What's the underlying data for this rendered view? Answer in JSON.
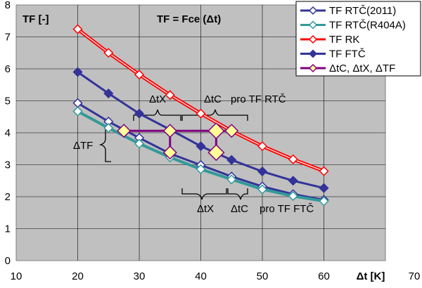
{
  "chart_data": {
    "type": "line",
    "title": "TF = Fce (Δt)",
    "ylabel": "TF [-]",
    "xlabel": "Δt [K]",
    "xlim": [
      10,
      70
    ],
    "ylim": [
      0,
      8
    ],
    "xticks": [
      10,
      20,
      30,
      40,
      50,
      60,
      70
    ],
    "yticks": [
      0,
      1,
      2,
      3,
      4,
      5,
      6,
      7,
      8
    ],
    "grid": true,
    "legend_position": "top-right",
    "plot_background": "#c0c0c0",
    "series": [
      {
        "name": "TF RTČ(2011)",
        "color": "#333399",
        "marker": "diamond-open",
        "x": [
          20,
          25,
          30,
          35,
          40,
          45,
          50,
          55,
          60
        ],
        "y": [
          4.93,
          4.35,
          3.84,
          3.35,
          2.99,
          2.63,
          2.32,
          2.08,
          1.9
        ]
      },
      {
        "name": "TF RTČ(R404A)",
        "color": "#339999",
        "marker": "diamond-open",
        "x": [
          20,
          25,
          30,
          35,
          40,
          45,
          50,
          55,
          60
        ],
        "y": [
          4.67,
          4.15,
          3.66,
          3.23,
          2.86,
          2.54,
          2.23,
          2.02,
          1.86
        ]
      },
      {
        "name": "TF RK",
        "color": "#ff0000",
        "marker": "diamond-open",
        "x": [
          20,
          25,
          30,
          35,
          40,
          45,
          50,
          55,
          60
        ],
        "y": [
          7.24,
          6.5,
          5.82,
          5.18,
          4.6,
          4.06,
          3.58,
          3.17,
          2.8
        ]
      },
      {
        "name": "TF FTČ",
        "color": "#333399",
        "marker": "diamond-filled",
        "x": [
          20,
          25,
          30,
          35,
          40,
          45,
          50,
          55,
          60
        ],
        "y": [
          5.9,
          5.23,
          4.6,
          4.1,
          3.58,
          3.15,
          2.79,
          2.5,
          2.27
        ]
      },
      {
        "name": "ΔtC, ΔtX, ΔTF",
        "color": "#800080",
        "marker": "diamond-yellow",
        "x": [
          27.5,
          35,
          42.5
        ],
        "y": [
          4.06,
          4.06,
          4.06
        ]
      }
    ],
    "extra_points": [
      {
        "x": 35,
        "y": 3.38
      },
      {
        "x": 42.5,
        "y": 3.38
      },
      {
        "x": 45,
        "y": 4.06
      }
    ],
    "annotations": {
      "top_dtx": "ΔtX",
      "top_dtc": "ΔtC",
      "top_suffix": "pro TF RTČ",
      "left_dtf": "ΔTF",
      "bottom_dtx": "ΔtX",
      "bottom_dtc": "ΔtC",
      "bottom_suffix": "pro TF FTČ"
    }
  }
}
